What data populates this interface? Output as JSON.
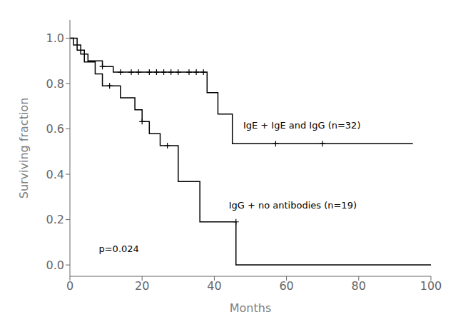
{
  "chart_data": {
    "type": "line",
    "x_label": "Months",
    "y_label": "Surviving fraction",
    "xlim": [
      0,
      100
    ],
    "ylim": [
      -0.05,
      1.08
    ],
    "xticks": [
      0,
      20,
      40,
      60,
      80,
      100
    ],
    "yticks": [
      {
        "value": 0.0,
        "label": "0.0"
      },
      0.2,
      0.4,
      0.6,
      0.8,
      {
        "value": 1.0,
        "label": "1.0"
      }
    ],
    "series": [
      {
        "type": "line",
        "color": "#000000",
        "x": [
          0,
          1,
          1,
          3,
          3,
          5,
          5,
          9,
          9,
          12,
          12,
          38,
          38,
          41,
          41,
          45,
          45,
          95
        ],
        "values": [
          1.0,
          1.0,
          0.97,
          0.97,
          0.93,
          0.93,
          0.9,
          0.9,
          0.875,
          0.875,
          0.85,
          0.85,
          0.76,
          0.76,
          0.665,
          0.665,
          0.535,
          0.535
        ]
      },
      {
        "type": "line",
        "color": "#000000",
        "x": [
          0,
          2,
          2,
          4,
          4,
          7,
          7,
          9,
          9,
          14,
          14,
          18,
          18,
          20,
          20,
          22,
          22,
          25,
          25,
          30,
          30,
          36,
          36,
          46,
          46,
          100
        ],
        "values": [
          1.0,
          1.0,
          0.947,
          0.947,
          0.895,
          0.895,
          0.842,
          0.842,
          0.79,
          0.79,
          0.737,
          0.737,
          0.684,
          0.684,
          0.632,
          0.632,
          0.579,
          0.579,
          0.526,
          0.526,
          0.368,
          0.368,
          0.19,
          0.19,
          0.0,
          0.0
        ]
      },
      {
        "type": "scatter",
        "marker": "plus",
        "color": "#000000",
        "x": [
          9,
          14,
          17,
          19,
          22,
          24,
          26,
          28,
          30,
          33,
          35,
          37,
          57,
          70
        ],
        "values": [
          0.875,
          0.85,
          0.85,
          0.85,
          0.85,
          0.85,
          0.85,
          0.85,
          0.85,
          0.85,
          0.85,
          0.85,
          0.535,
          0.535
        ]
      },
      {
        "type": "scatter",
        "marker": "plus",
        "color": "#000000",
        "x": [
          11,
          20,
          27,
          46
        ],
        "values": [
          0.79,
          0.632,
          0.526,
          0.19
        ]
      }
    ],
    "annotations": [
      {
        "text": "IgE + IgE and IgG (n=32)",
        "x": 48,
        "y": 0.615
      },
      {
        "text": "IgG + no antibodies (n=19)",
        "x": 44,
        "y": 0.265
      },
      {
        "text": "p=0.024",
        "x": 8,
        "y": 0.07
      }
    ]
  }
}
